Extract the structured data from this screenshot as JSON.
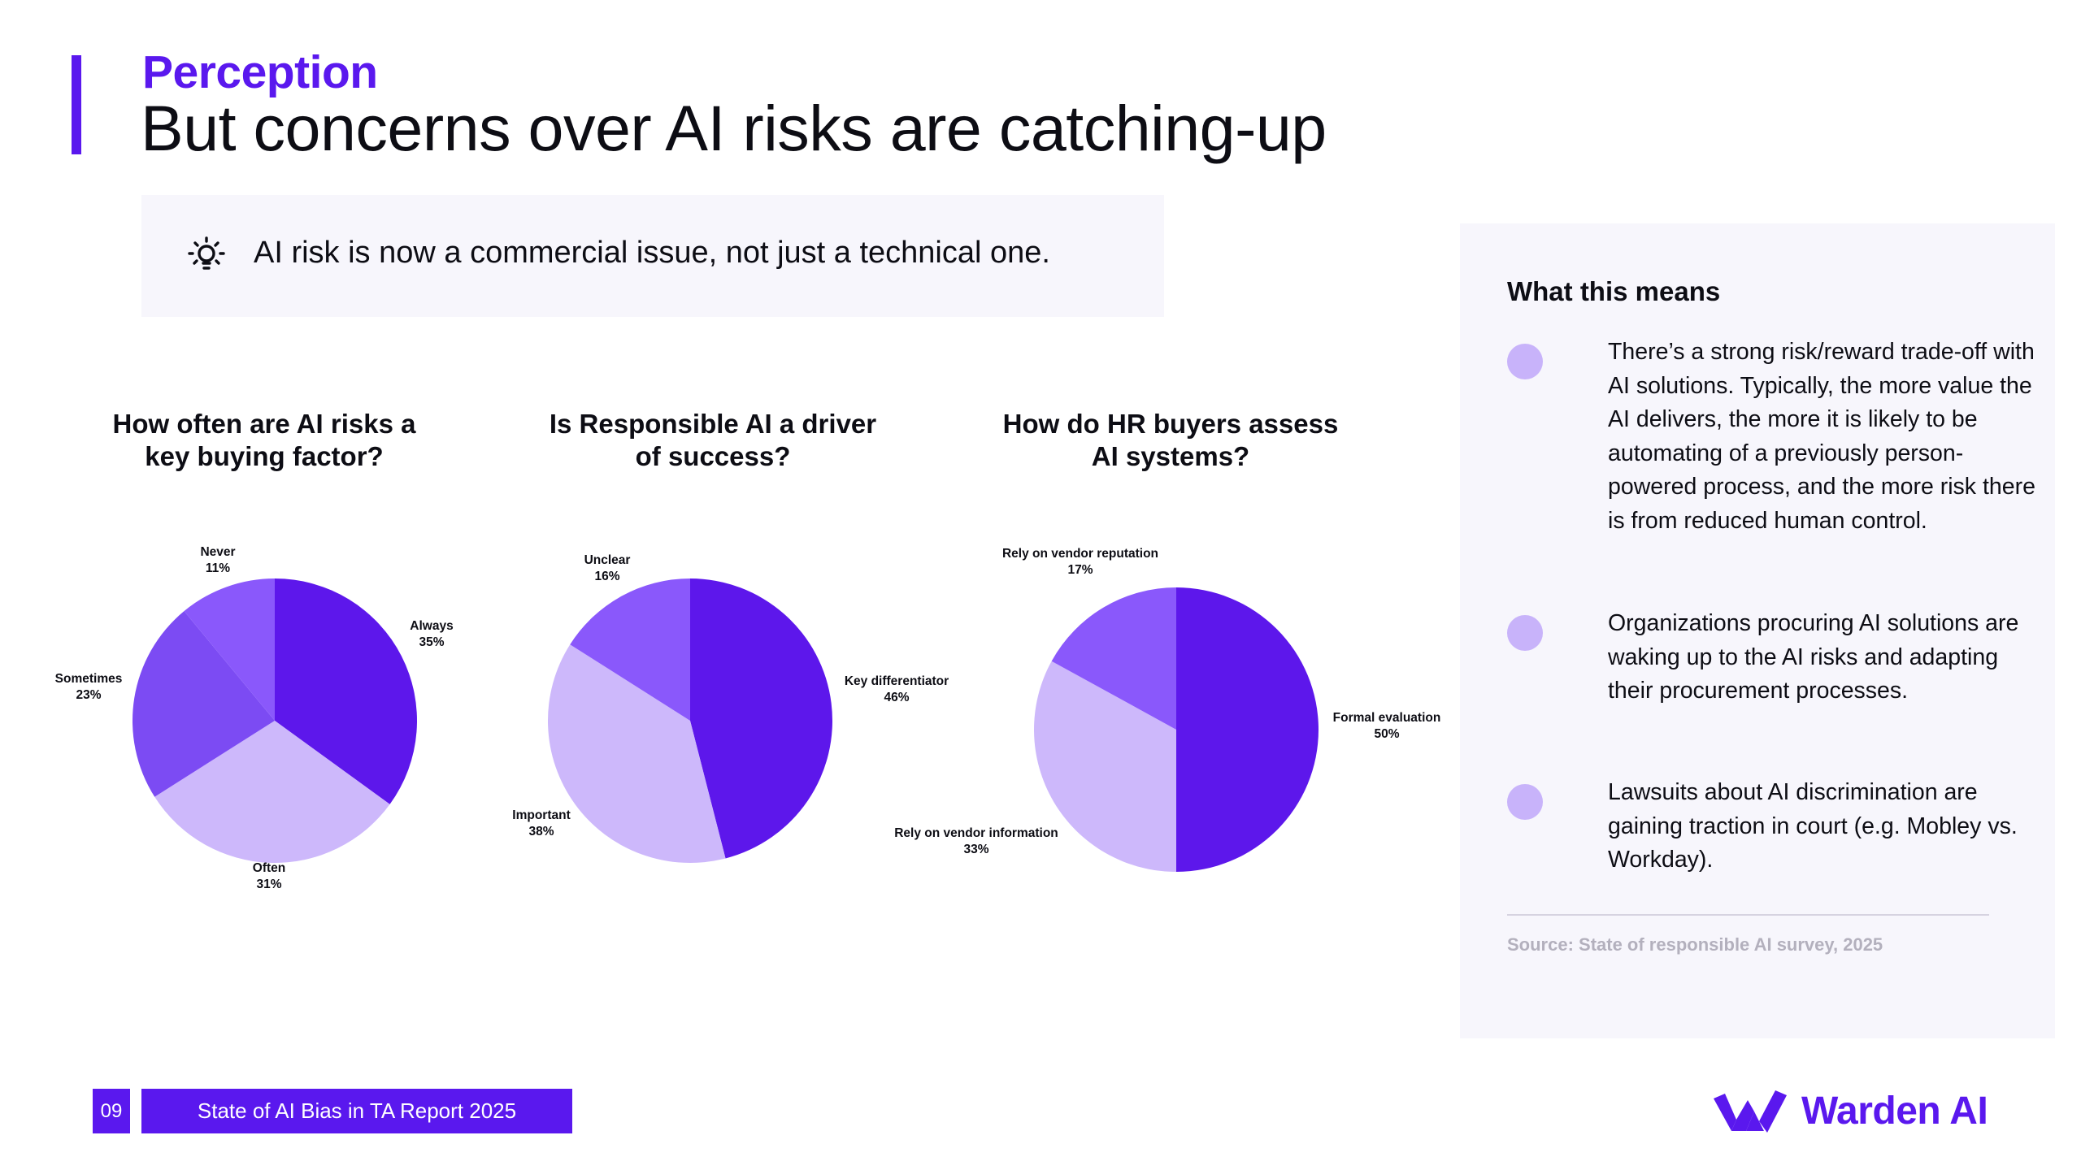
{
  "header": {
    "kicker": "Perception",
    "headline": "But concerns over AI risks are catching-up"
  },
  "insight": {
    "icon": "lightbulb-icon",
    "text": "AI risk is now a commercial issue, not just a technical one."
  },
  "colors": {
    "accent": "#5a18ee",
    "slice_dark": "#5d17eb",
    "slice_medium": "#7c4bf3",
    "slice_light": "#cdb8fb",
    "slice_violet": "#8a58fb",
    "panel_bg": "#f7f6fc"
  },
  "chart_data": [
    {
      "type": "pie",
      "title": "How often are AI risks a key buying factor?",
      "title_lines": [
        "How often are AI risks a",
        "key buying factor?"
      ],
      "slices": [
        {
          "label": "Always",
          "value": 35,
          "display": "35%"
        },
        {
          "label": "Often",
          "value": 31,
          "display": "31%"
        },
        {
          "label": "Sometimes",
          "value": 23,
          "display": "23%"
        },
        {
          "label": "Never",
          "value": 11,
          "display": "11%"
        }
      ]
    },
    {
      "type": "pie",
      "title": "Is Responsible AI a driver of success?",
      "title_lines": [
        "Is Responsible AI a driver",
        "of success?"
      ],
      "slices": [
        {
          "label": "Key differentiator",
          "value": 46,
          "display": "46%"
        },
        {
          "label": "Important",
          "value": 38,
          "display": "38%"
        },
        {
          "label": "Unclear",
          "value": 16,
          "display": "16%"
        }
      ]
    },
    {
      "type": "pie",
      "title": "How do HR buyers assess AI systems?",
      "title_lines": [
        "How do HR buyers assess",
        "AI systems?"
      ],
      "slices": [
        {
          "label": "Formal evaluation",
          "value": 50,
          "display": "50%"
        },
        {
          "label": "Rely on vendor information",
          "value": 33,
          "display": "33%"
        },
        {
          "label": "Rely on vendor reputation",
          "value": 17,
          "display": "17%"
        }
      ]
    }
  ],
  "sidebar": {
    "heading": "What this means",
    "points": [
      "There’s a strong risk/reward trade-off with AI solutions. Typically, the more value the AI delivers, the more it is likely to be automating of a previously person-powered process, and the more risk there is from reduced human control.",
      "Organizations procuring AI solutions are waking up to the AI risks and adapting their procurement processes.",
      "Lawsuits about AI discrimination are gaining traction in court (e.g. Mobley vs. Workday)."
    ],
    "source": "Source: State of responsible AI survey, 2025"
  },
  "footer": {
    "page_number": "09",
    "report_title": "State of AI Bias in TA Report 2025",
    "brand": "Warden AI",
    "brand_icon": "warden-logo-icon"
  }
}
